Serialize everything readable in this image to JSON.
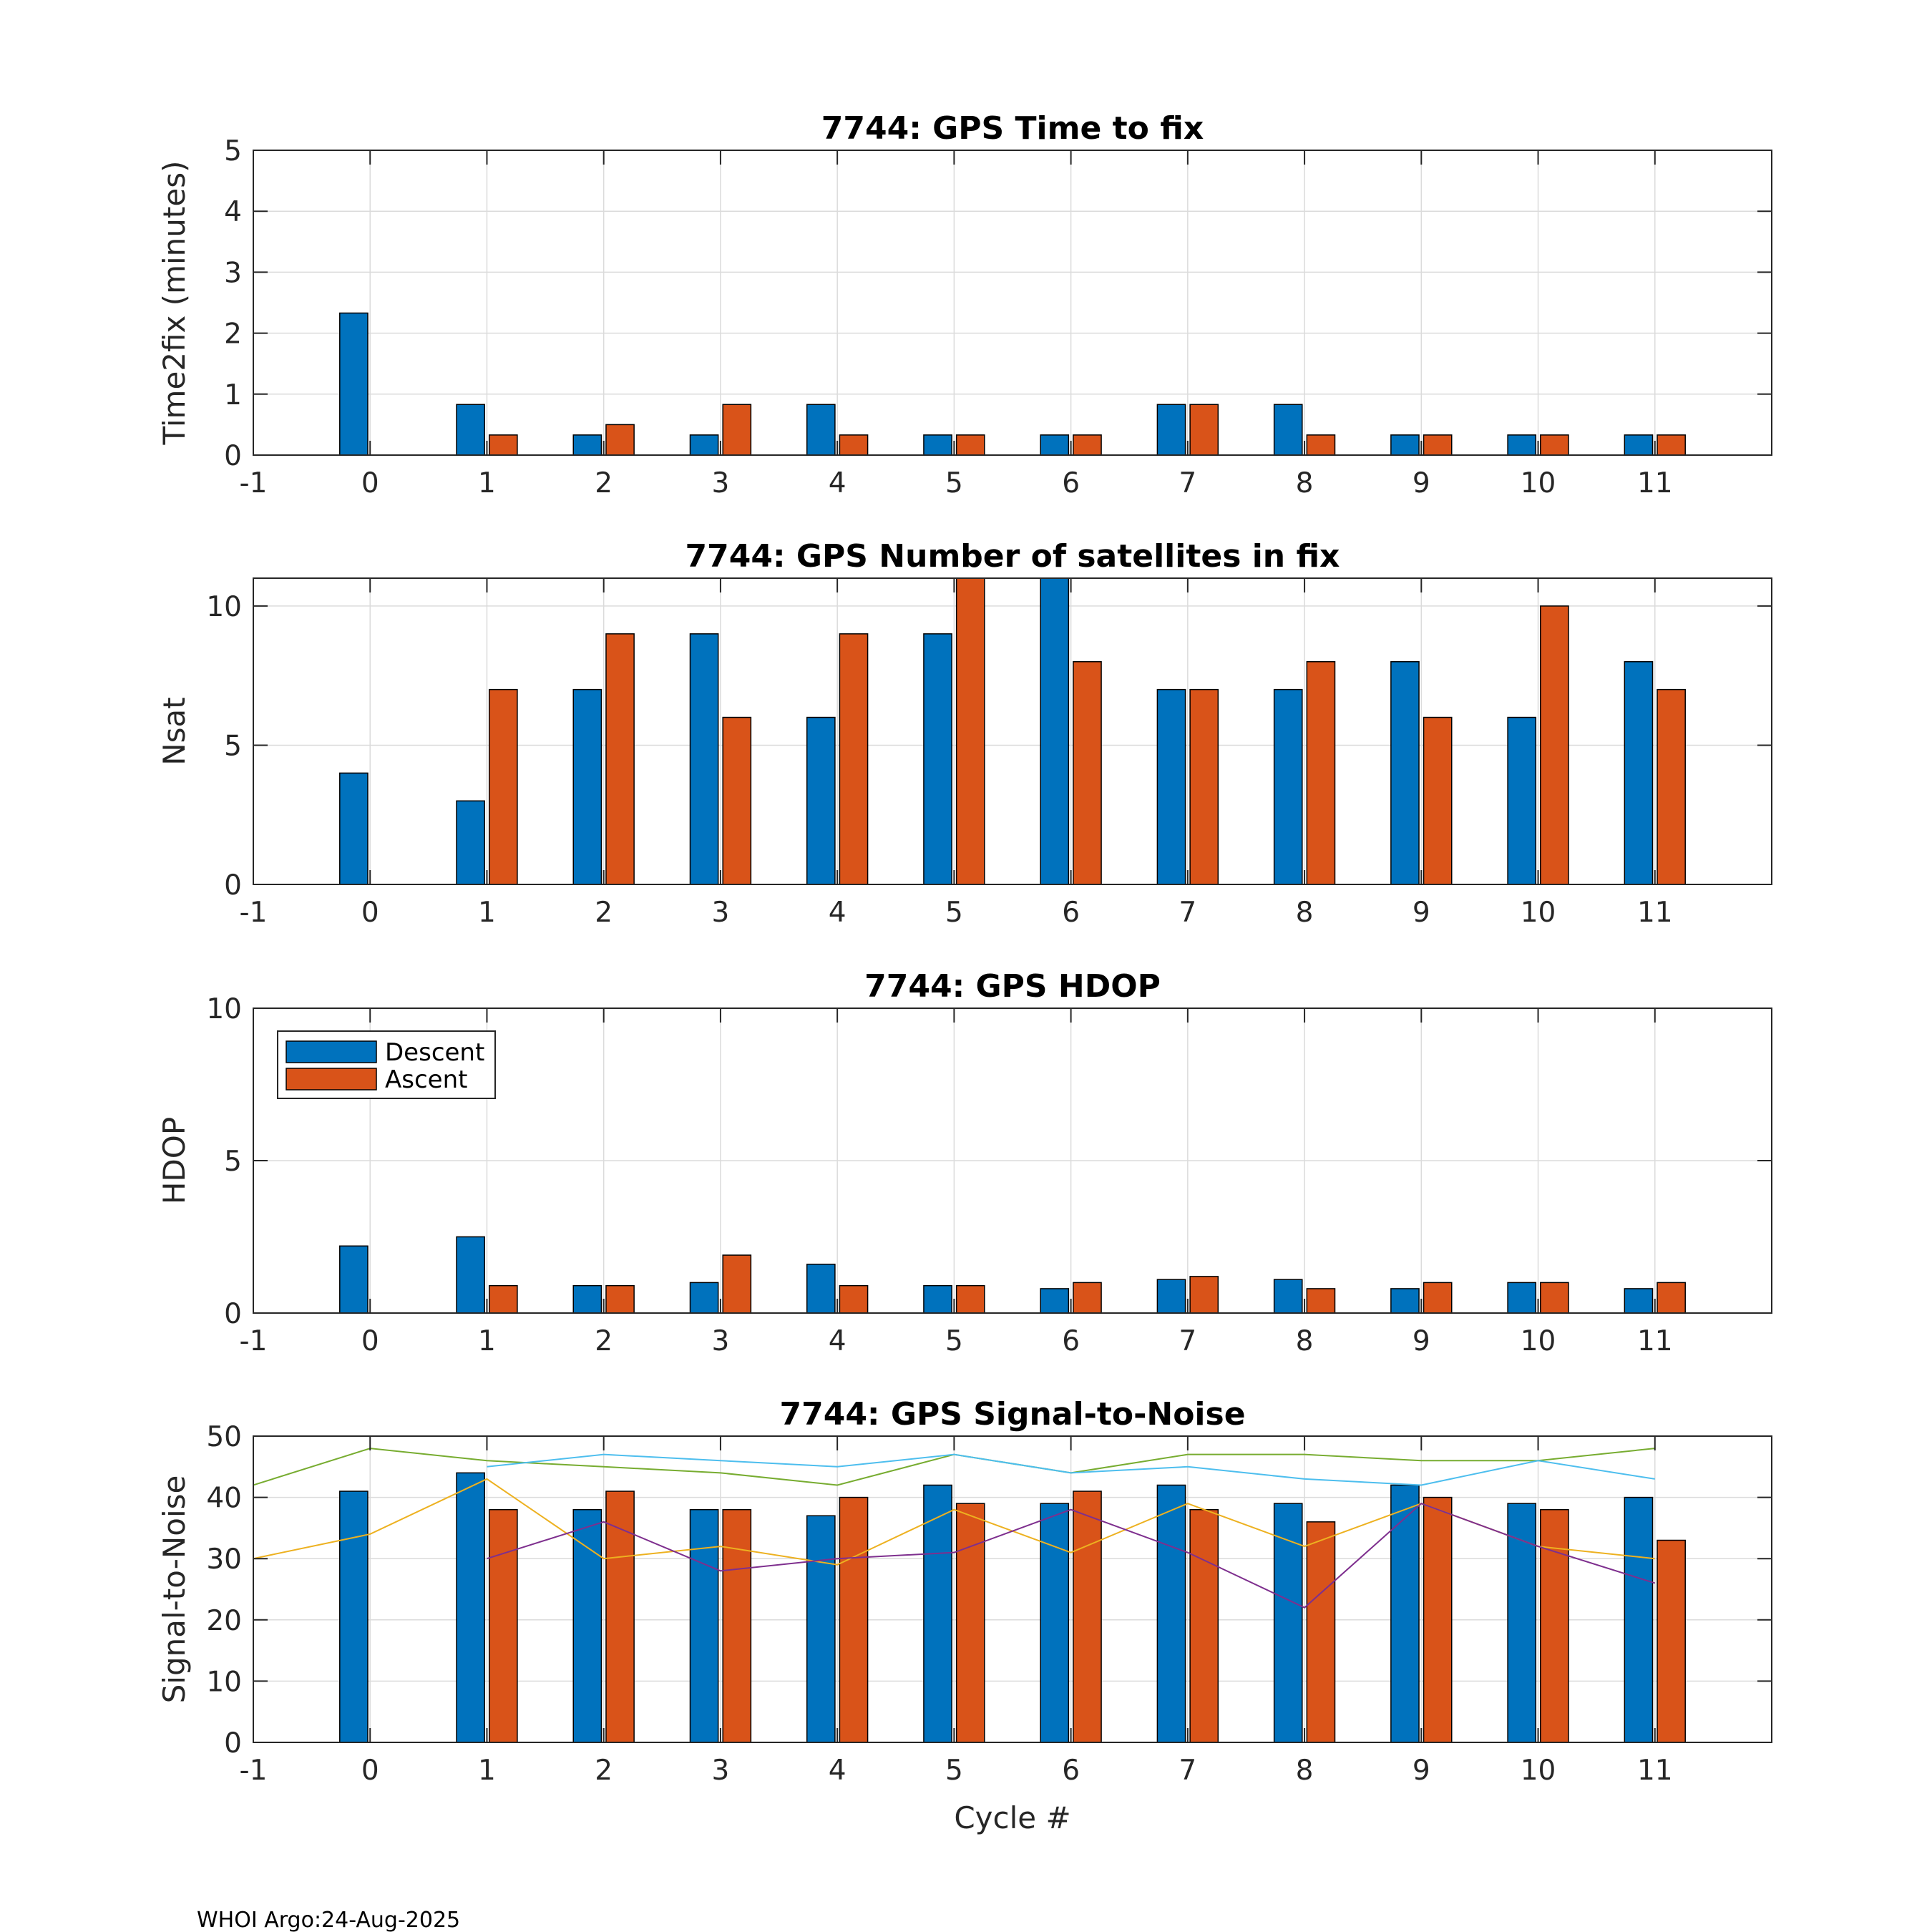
{
  "footer": "WHOI Argo:24-Aug-2025",
  "colors": {
    "descent": "#0072BD",
    "ascent": "#D95319",
    "grid": "#DBDBDB",
    "axis": "#262626"
  },
  "legend": {
    "descent": "Descent",
    "ascent": "Ascent"
  },
  "chart_data": [
    {
      "type": "bar",
      "title": "7744: GPS Time to fix",
      "ylabel": "Time2fix (minutes)",
      "xlabel": "",
      "xlim": [
        -1,
        12
      ],
      "xticks": [
        "-1",
        "0",
        "1",
        "2",
        "3",
        "4",
        "5",
        "6",
        "7",
        "8",
        "9",
        "10",
        "11"
      ],
      "ylim": [
        0,
        5
      ],
      "yticks": [
        "0",
        "1",
        "2",
        "3",
        "4",
        "5"
      ],
      "cycles": [
        0,
        1,
        2,
        3,
        4,
        5,
        6,
        7,
        8,
        9,
        10,
        11
      ],
      "series": [
        {
          "name": "Descent",
          "values": [
            2.33,
            0.83,
            0.33,
            0.33,
            0.83,
            0.33,
            0.33,
            0.83,
            0.83,
            0.33,
            0.33,
            0.33
          ]
        },
        {
          "name": "Ascent",
          "values": [
            null,
            0.33,
            0.5,
            0.83,
            0.33,
            0.33,
            0.33,
            0.83,
            0.33,
            0.33,
            0.33,
            0.33
          ]
        }
      ]
    },
    {
      "type": "bar",
      "title": "7744: GPS Number of satellites in fix",
      "ylabel": "Nsat",
      "xlabel": "",
      "xlim": [
        -1,
        12
      ],
      "xticks": [
        "-1",
        "0",
        "1",
        "2",
        "3",
        "4",
        "5",
        "6",
        "7",
        "8",
        "9",
        "10",
        "11"
      ],
      "ylim": [
        0,
        11
      ],
      "yticks": [
        "0",
        "5",
        "10"
      ],
      "cycles": [
        0,
        1,
        2,
        3,
        4,
        5,
        6,
        7,
        8,
        9,
        10,
        11
      ],
      "series": [
        {
          "name": "Descent",
          "values": [
            4,
            3,
            7,
            9,
            6,
            9,
            11,
            7,
            7,
            8,
            6,
            8
          ]
        },
        {
          "name": "Ascent",
          "values": [
            null,
            7,
            9,
            6,
            9,
            11,
            8,
            7,
            8,
            6,
            10,
            7
          ]
        }
      ]
    },
    {
      "type": "bar",
      "title": "7744: GPS HDOP",
      "ylabel": "HDOP",
      "xlabel": "",
      "xlim": [
        -1,
        12
      ],
      "xticks": [
        "-1",
        "0",
        "1",
        "2",
        "3",
        "4",
        "5",
        "6",
        "7",
        "8",
        "9",
        "10",
        "11"
      ],
      "ylim": [
        0,
        10
      ],
      "yticks": [
        "0",
        "5",
        "10"
      ],
      "legend_position": "top-left",
      "cycles": [
        0,
        1,
        2,
        3,
        4,
        5,
        6,
        7,
        8,
        9,
        10,
        11
      ],
      "series": [
        {
          "name": "Descent",
          "values": [
            2.2,
            2.5,
            0.9,
            1.0,
            1.6,
            0.9,
            0.8,
            1.1,
            1.1,
            0.8,
            1.0,
            0.8
          ]
        },
        {
          "name": "Ascent",
          "values": [
            null,
            0.9,
            0.9,
            1.9,
            0.9,
            0.9,
            1.0,
            1.2,
            0.8,
            1.0,
            1.0,
            1.0
          ]
        }
      ]
    },
    {
      "type": "bar",
      "title": "7744: GPS Signal-to-Noise",
      "ylabel": "Signal-to-Noise",
      "xlabel": "Cycle #",
      "xlim": [
        -1,
        12
      ],
      "xticks": [
        "-1",
        "0",
        "1",
        "2",
        "3",
        "4",
        "5",
        "6",
        "7",
        "8",
        "9",
        "10",
        "11"
      ],
      "ylim": [
        0,
        50
      ],
      "yticks": [
        "0",
        "10",
        "20",
        "30",
        "40",
        "50"
      ],
      "cycles": [
        0,
        1,
        2,
        3,
        4,
        5,
        6,
        7,
        8,
        9,
        10,
        11
      ],
      "series": [
        {
          "name": "Descent",
          "values": [
            41,
            44,
            38,
            38,
            37,
            42,
            39,
            42,
            39,
            42,
            39,
            40
          ]
        },
        {
          "name": "Ascent",
          "values": [
            null,
            38,
            41,
            38,
            40,
            39,
            41,
            38,
            36,
            40,
            38,
            33
          ]
        }
      ],
      "lines": [
        {
          "color": "#77AC30",
          "x": [
            -1,
            0,
            1,
            2,
            3,
            4,
            5,
            6,
            7,
            8,
            9,
            10,
            11
          ],
          "y": [
            42,
            48,
            46,
            45,
            44,
            42,
            47,
            44,
            47,
            47,
            46,
            46,
            48
          ]
        },
        {
          "color": "#4DBEEE",
          "x": [
            1,
            2,
            3,
            4,
            5,
            6,
            7,
            8,
            9,
            10,
            11
          ],
          "y": [
            45,
            47,
            46,
            45,
            47,
            44,
            45,
            43,
            42,
            46,
            43
          ]
        },
        {
          "color": "#EDB120",
          "x": [
            -1,
            0,
            1,
            2,
            3,
            4,
            5,
            6,
            7,
            8,
            9,
            10,
            11
          ],
          "y": [
            30,
            34,
            43,
            30,
            32,
            29,
            38,
            31,
            39,
            32,
            39,
            32,
            30
          ]
        },
        {
          "color": "#7E2F8E",
          "x": [
            1,
            2,
            3,
            4,
            5,
            6,
            7,
            8,
            9,
            10,
            11
          ],
          "y": [
            30,
            36,
            28,
            30,
            31,
            38,
            31,
            22,
            39,
            32,
            26
          ]
        }
      ]
    }
  ]
}
